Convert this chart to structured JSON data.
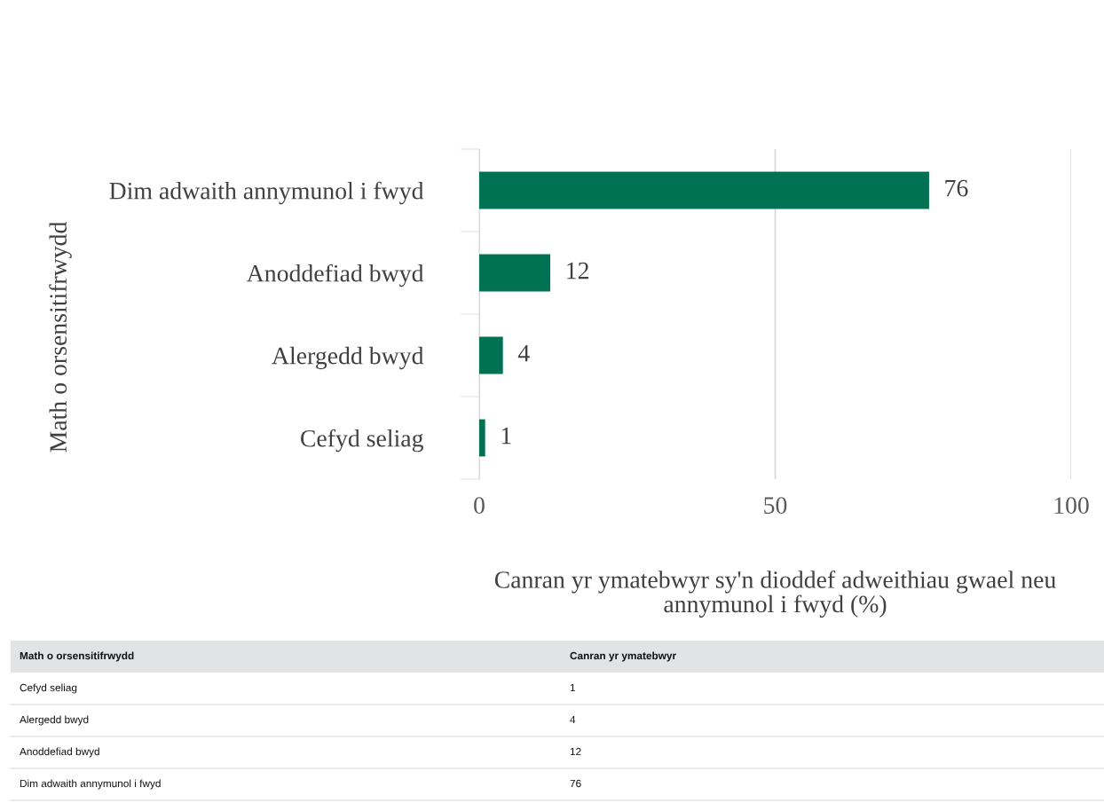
{
  "chart_data": {
    "type": "bar",
    "orientation": "horizontal",
    "categories": [
      "Dim adwaith annymunol i fwyd",
      "Anoddefiad bwyd",
      "Alergedd bwyd",
      "Cefyd seliag"
    ],
    "values": [
      76,
      12,
      4,
      1
    ],
    "color": "#007152",
    "xlim": [
      0,
      100
    ],
    "xticks": [
      0,
      50,
      100
    ],
    "grid": "x",
    "value_labels": [
      "76",
      "12",
      "4",
      "1"
    ],
    "xlabel": "Canran yr ymatebwyr sy'n dioddef adweithiau gwael neu\nannymunol i fwyd (%)",
    "ylabel": "Math o orsensitifrwydd",
    "annotations": [
      "Math o orsensitifrwydd",
      "Canran yr ymatebwyr"
    ]
  }
}
